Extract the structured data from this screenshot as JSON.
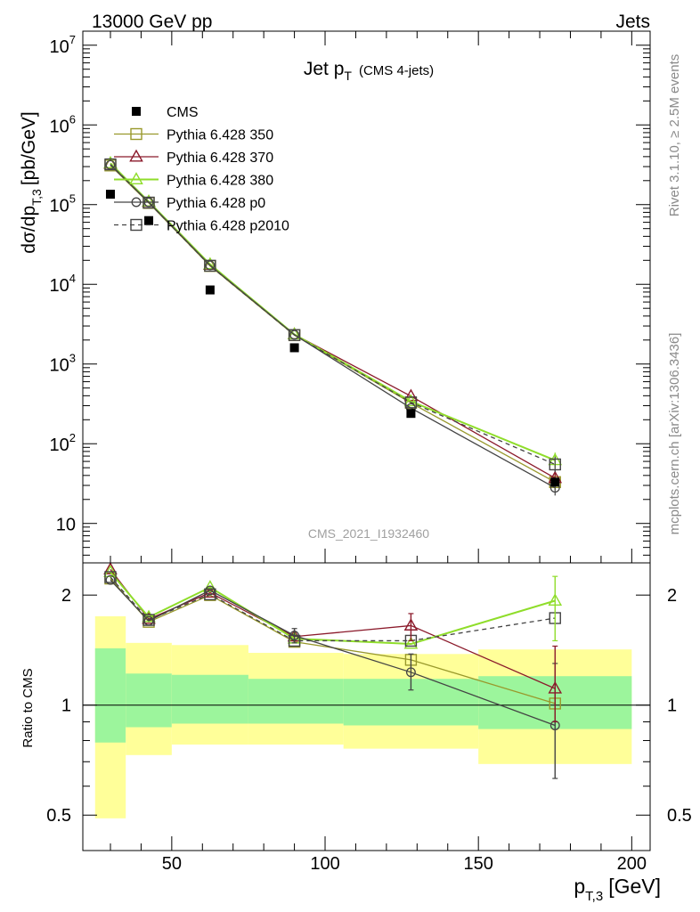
{
  "header": {
    "left": "13000 GeV pp",
    "right": "Jets"
  },
  "side_labels": {
    "rivet": "Rivet 3.1.10, ≥ 2.5M events",
    "mcplots": "mcplots.cern.ch [arXiv:1306.3436]"
  },
  "chart_data": {
    "type": "line",
    "title_main": "Jet p",
    "title_sub": "T",
    "title_note": "(CMS 4-jets)",
    "watermark": "CMS_2021_I1932460",
    "xlabel_main": "p",
    "xlabel_sub": "T,3",
    "xlabel_unit": "[GeV]",
    "ylabel_prefix": "dσ/dp",
    "ylabel_sub": "T,3",
    "ylabel_unit": "[pb/GeV]",
    "ratio_ylabel": "Ratio to CMS",
    "xlim": [
      21,
      206
    ],
    "ylim_main": [
      3.2,
      15000000
    ],
    "ylim_ratio": [
      0.4,
      2.45
    ],
    "x_ticks": [
      {
        "v": 50,
        "label": "50"
      },
      {
        "v": 100,
        "label": "100"
      },
      {
        "v": 150,
        "label": "150"
      },
      {
        "v": 200,
        "label": "200"
      }
    ],
    "y_ticks_main": [
      {
        "v": 10,
        "base": "10",
        "exp": ""
      },
      {
        "v": 100,
        "base": "10",
        "exp": "2"
      },
      {
        "v": 1000,
        "base": "10",
        "exp": "3"
      },
      {
        "v": 10000,
        "base": "10",
        "exp": "4"
      },
      {
        "v": 100000,
        "base": "10",
        "exp": "5"
      },
      {
        "v": 1000000,
        "base": "10",
        "exp": "6"
      },
      {
        "v": 10000000,
        "base": "10",
        "exp": "7"
      }
    ],
    "y_ticks_ratio": [
      {
        "v": 0.5,
        "label": "0.5"
      },
      {
        "v": 1,
        "label": "1"
      },
      {
        "v": 2,
        "label": "2"
      }
    ],
    "bins": [
      {
        "lo": 25,
        "hi": 35,
        "inner": [
          0.79,
          1.43
        ],
        "outer": [
          0.49,
          1.75
        ]
      },
      {
        "lo": 35,
        "hi": 50,
        "inner": [
          0.87,
          1.22
        ],
        "outer": [
          0.73,
          1.48
        ]
      },
      {
        "lo": 50,
        "hi": 75,
        "inner": [
          0.89,
          1.21
        ],
        "outer": [
          0.78,
          1.46
        ]
      },
      {
        "lo": 75,
        "hi": 106,
        "inner": [
          0.89,
          1.18
        ],
        "outer": [
          0.78,
          1.39
        ]
      },
      {
        "lo": 106,
        "hi": 150,
        "inner": [
          0.88,
          1.18
        ],
        "outer": [
          0.76,
          1.38
        ]
      },
      {
        "lo": 150,
        "hi": 200,
        "inner": [
          0.86,
          1.2
        ],
        "outer": [
          0.69,
          1.42
        ]
      }
    ],
    "x": [
      30,
      42.5,
      62.5,
      90,
      128,
      175
    ],
    "data": {
      "name": "CMS",
      "values": [
        135000,
        63000,
        8500,
        1600,
        240,
        33
      ]
    },
    "series": [
      {
        "name": "Pythia 6.428 350",
        "color": "#99992c",
        "marker": "square",
        "dashed": false,
        "values": [
          310000,
          105000,
          17000,
          2300,
          325,
          33
        ],
        "ratio": [
          2.22,
          1.69,
          2.0,
          1.49,
          1.33,
          1.01
        ]
      },
      {
        "name": "Pythia 6.428 370",
        "color": "#8b1a2b",
        "marker": "triangle",
        "dashed": false,
        "values": [
          325000,
          108000,
          17500,
          2350,
          395,
          37
        ],
        "ratio": [
          2.35,
          1.72,
          2.03,
          1.54,
          1.65,
          1.11
        ]
      },
      {
        "name": "Pythia 6.428 380",
        "color": "#8fdd2a",
        "marker": "triangle",
        "dashed": false,
        "values": [
          330000,
          109000,
          17800,
          2350,
          340,
          62
        ],
        "ratio": [
          2.31,
          1.74,
          2.1,
          1.52,
          1.47,
          1.93
        ]
      },
      {
        "name": "Pythia 6.428 p0",
        "color": "#444444",
        "marker": "circle",
        "dashed": false,
        "values": [
          315000,
          107000,
          17300,
          2330,
          280,
          28
        ],
        "ratio": [
          2.2,
          1.7,
          2.06,
          1.55,
          1.23,
          0.88
        ]
      },
      {
        "name": "Pythia 6.428 p2010",
        "color": "#444444",
        "marker": "square",
        "dashed": true,
        "values": [
          320000,
          106000,
          17100,
          2310,
          330,
          55
        ],
        "ratio": [
          2.24,
          1.71,
          2.01,
          1.5,
          1.5,
          1.73
        ]
      }
    ]
  }
}
